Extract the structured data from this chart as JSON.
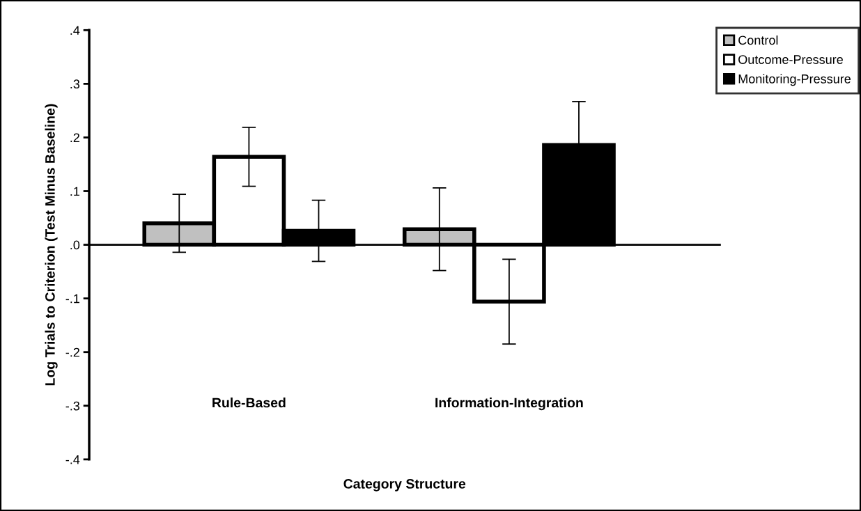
{
  "chart_data": {
    "type": "bar",
    "xlabel": "Category Structure",
    "ylabel": "Log Trials to Criterion (Test Minus Baseline)",
    "categories": [
      "Rule-Based",
      "Information-Integration"
    ],
    "series": [
      {
        "name": "Control",
        "color": "#c0c0c0",
        "values": [
          0.04,
          0.029
        ],
        "errors": [
          0.054,
          0.077
        ]
      },
      {
        "name": "Outcome-Pressure",
        "color": "#ffffff",
        "values": [
          0.164,
          -0.106
        ],
        "errors": [
          0.055,
          0.079
        ]
      },
      {
        "name": "Monitoring-Pressure",
        "color": "#000000",
        "values": [
          0.026,
          0.186
        ],
        "errors": [
          0.057,
          0.081
        ]
      }
    ],
    "ylim": [
      -0.4,
      0.4
    ],
    "yticks": [
      {
        "value": -0.4,
        "label": "-.4"
      },
      {
        "value": -0.3,
        "label": "-.3"
      },
      {
        "value": -0.2,
        "label": "-.2"
      },
      {
        "value": -0.1,
        "label": "-.1"
      },
      {
        "value": 0.0,
        "label": ".0"
      },
      {
        "value": 0.1,
        "label": ".1"
      },
      {
        "value": 0.2,
        "label": ".2"
      },
      {
        "value": 0.3,
        "label": ".3"
      },
      {
        "value": 0.4,
        "label": ".4"
      }
    ],
    "legend": "top right"
  }
}
